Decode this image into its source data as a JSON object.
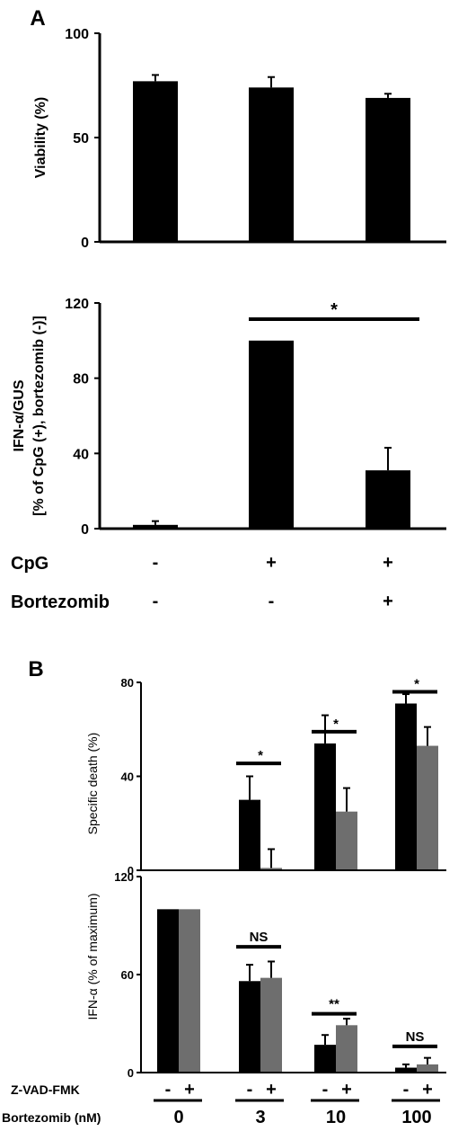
{
  "chart_data": [
    {
      "type": "bar",
      "panel": "A",
      "ylabel": "Viability (%)",
      "ylim": [
        0,
        100
      ],
      "yticks": [
        "0",
        "50",
        "100"
      ],
      "categories": [
        "1",
        "2",
        "3"
      ],
      "values": [
        77,
        74,
        69
      ],
      "errors": [
        3,
        5,
        2
      ],
      "color": "#000000"
    },
    {
      "type": "bar",
      "ylabel_line1": "IFN-α/GUS",
      "ylabel_line2": "[% of CpG (+), bortezomib (-)]",
      "ylim": [
        0,
        120
      ],
      "yticks": [
        "0",
        "40",
        "80",
        "120"
      ],
      "categories": [
        "1",
        "2",
        "3"
      ],
      "values": [
        2,
        100,
        31
      ],
      "errors": [
        2,
        0,
        12
      ],
      "color": "#000000",
      "significance": [
        {
          "from": 1,
          "to": 2,
          "label": "*"
        }
      ],
      "conditions": [
        {
          "label": "CpG",
          "values": [
            "-",
            "+",
            "+"
          ]
        },
        {
          "label": "Bortezomib",
          "values": [
            "-",
            "-",
            "+"
          ]
        }
      ]
    },
    {
      "type": "bar",
      "panel": "B",
      "ylabel": "Specific death (%)",
      "ylim": [
        0,
        80
      ],
      "yticks": [
        "0",
        "40",
        "80"
      ],
      "categories": [
        "0",
        "3",
        "10",
        "100"
      ],
      "series": [
        {
          "values": [
            0,
            30,
            54,
            71
          ],
          "errors": [
            0,
            10,
            12,
            4
          ],
          "color": "#000000"
        },
        {
          "values": [
            0,
            1,
            25,
            53
          ],
          "errors": [
            0,
            8,
            10,
            8
          ],
          "color": "#6e6e6e"
        }
      ],
      "significance": [
        {
          "group": 1,
          "label": "*"
        },
        {
          "group": 2,
          "label": "*"
        },
        {
          "group": 3,
          "label": "*"
        }
      ]
    },
    {
      "type": "bar",
      "ylabel": "IFN-α (% of maximum)",
      "ylim": [
        0,
        120
      ],
      "yticks": [
        "0",
        "60",
        "120"
      ],
      "categories": [
        "0",
        "3",
        "10",
        "100"
      ],
      "series": [
        {
          "values": [
            100,
            56,
            17,
            3
          ],
          "errors": [
            0,
            10,
            6,
            2
          ],
          "color": "#000000"
        },
        {
          "values": [
            100,
            58,
            29,
            5
          ],
          "errors": [
            0,
            10,
            4,
            4
          ],
          "color": "#6e6e6e"
        }
      ],
      "significance": [
        {
          "group": 1,
          "label": "NS"
        },
        {
          "group": 2,
          "label": "**"
        },
        {
          "group": 3,
          "label": "NS"
        }
      ],
      "conditions": [
        {
          "label": "Z-VAD-FMK",
          "values": [
            "-",
            "+"
          ]
        },
        {
          "label": "Bortezomib (nM)",
          "values": [
            "0",
            "3",
            "10",
            "100"
          ]
        }
      ]
    }
  ]
}
